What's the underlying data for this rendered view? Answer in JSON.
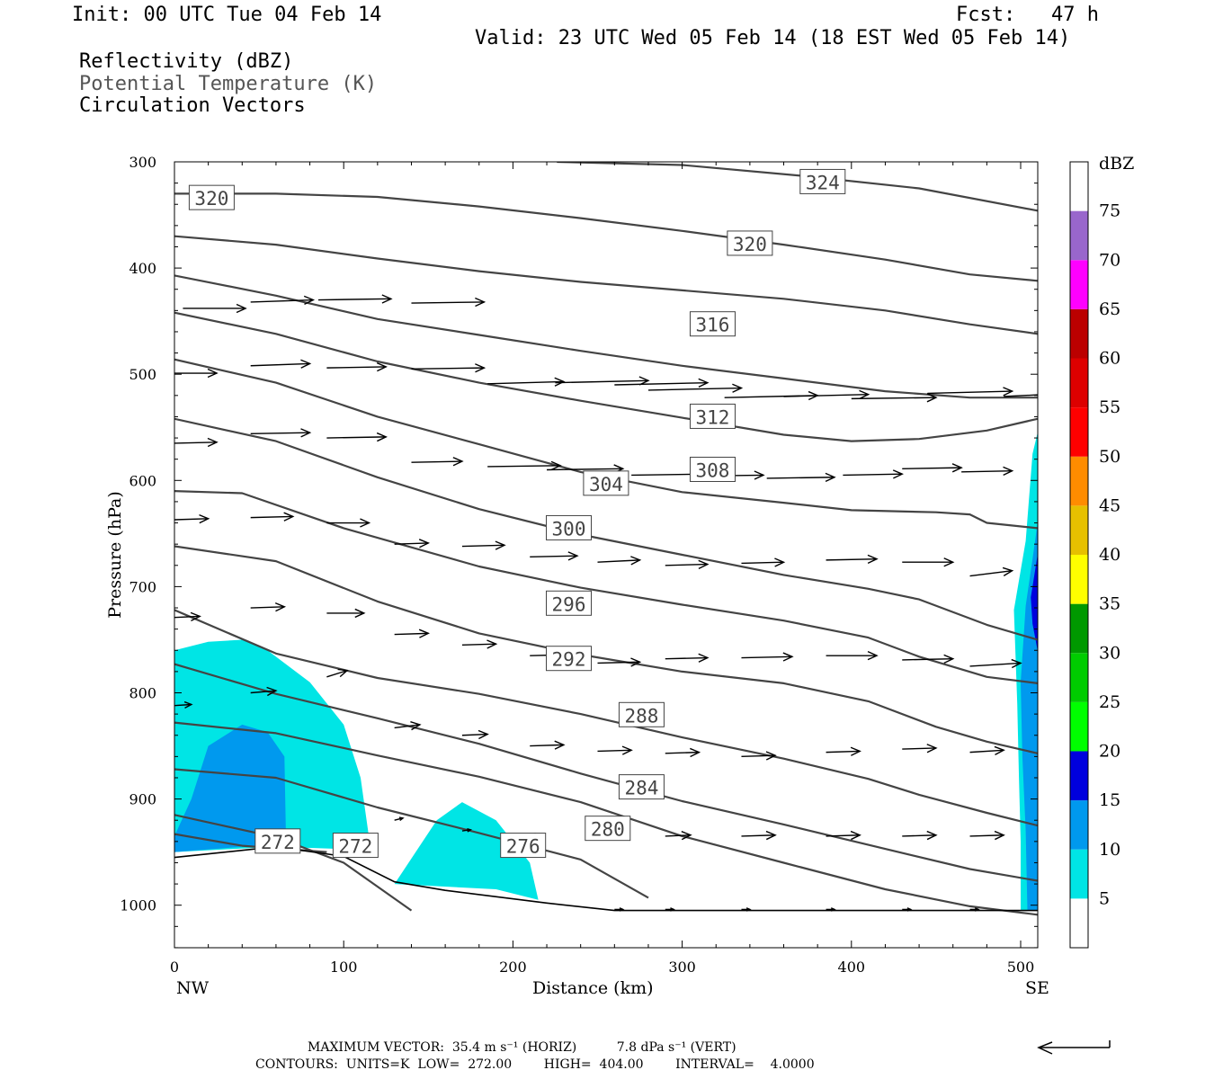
{
  "header": {
    "init": "Init: 00 UTC Tue 04 Feb 14",
    "fcst": "Fcst:   47 h",
    "valid": "Valid: 23 UTC Wed 05 Feb 14 (18 EST Wed 05 Feb 14)",
    "field1": "Reflectivity (dBZ)",
    "field2": "Potential Temperature (K)",
    "field3": "Circulation Vectors"
  },
  "footer": {
    "line1": "MAXIMUM VECTOR:  35.4 m s⁻¹ (HORIZ)          7.8 dPa s⁻¹ (VERT)",
    "line2": "CONTOURS:  UNITS=K  LOW=  272.00        HIGH=  404.00        INTERVAL=    4.0000"
  },
  "colors": {
    "contour": "#444444",
    "dbz_5": "#00e5e5",
    "dbz_10": "#0099ee",
    "dbz_15": "#0000dd"
  },
  "chart_data": {
    "type": "cross-section",
    "xlabel": "Distance (km)",
    "ylabel": "Pressure (hPa)",
    "x_ticks": [
      0,
      100,
      200,
      300,
      400,
      500
    ],
    "y_ticks": [
      300,
      400,
      500,
      600,
      700,
      800,
      900,
      1000
    ],
    "xlim": [
      0,
      510
    ],
    "ylim": [
      300,
      1040
    ],
    "y_inverted": true,
    "x_end_labels": {
      "left": "NW",
      "right": "SE"
    },
    "colorbar": {
      "unit": "dBZ",
      "levels": [
        5,
        10,
        15,
        20,
        25,
        30,
        35,
        40,
        45,
        50,
        55,
        60,
        65,
        70,
        75
      ],
      "colors": [
        "#ffffff",
        "#00e5e5",
        "#0099ee",
        "#0000dd",
        "#00ff00",
        "#00cc00",
        "#009900",
        "#ffff00",
        "#e6c000",
        "#ff8c00",
        "#ff0000",
        "#dd0000",
        "#bb0000",
        "#ff00ff",
        "#9966cc",
        "#ffffff"
      ]
    },
    "contour_labels": [
      {
        "value": "324",
        "x": 383,
        "p": 319
      },
      {
        "value": "320",
        "x": 22,
        "p": 334
      },
      {
        "value": "320",
        "x": 340,
        "p": 377
      },
      {
        "value": "316",
        "x": 318,
        "p": 453
      },
      {
        "value": "312",
        "x": 318,
        "p": 540
      },
      {
        "value": "308",
        "x": 318,
        "p": 590
      },
      {
        "value": "304",
        "x": 255,
        "p": 603
      },
      {
        "value": "300",
        "x": 233,
        "p": 645
      },
      {
        "value": "296",
        "x": 233,
        "p": 716
      },
      {
        "value": "292",
        "x": 233,
        "p": 768
      },
      {
        "value": "288",
        "x": 276,
        "p": 821
      },
      {
        "value": "284",
        "x": 276,
        "p": 889
      },
      {
        "value": "280",
        "x": 256,
        "p": 928
      },
      {
        "value": "276",
        "x": 206,
        "p": 944
      },
      {
        "value": "272",
        "x": 61,
        "p": 940
      },
      {
        "value": "272",
        "x": 107,
        "p": 944
      }
    ],
    "isentropes": [
      [
        [
          226,
          300
        ],
        [
          300,
          303
        ],
        [
          370,
          313
        ],
        [
          440,
          325
        ],
        [
          510,
          346
        ]
      ],
      [
        [
          0,
          330
        ],
        [
          60,
          330
        ],
        [
          120,
          333
        ],
        [
          180,
          342
        ],
        [
          240,
          353
        ],
        [
          300,
          365
        ],
        [
          360,
          378
        ],
        [
          420,
          392
        ],
        [
          470,
          406
        ],
        [
          510,
          412
        ]
      ],
      [
        [
          0,
          370
        ],
        [
          60,
          378
        ],
        [
          120,
          391
        ],
        [
          180,
          403
        ],
        [
          240,
          413
        ],
        [
          300,
          421
        ],
        [
          360,
          429
        ],
        [
          420,
          440
        ],
        [
          470,
          453
        ],
        [
          510,
          462
        ]
      ],
      [
        [
          0,
          407
        ],
        [
          60,
          426
        ],
        [
          120,
          448
        ],
        [
          180,
          463
        ],
        [
          240,
          478
        ],
        [
          300,
          492
        ],
        [
          360,
          504
        ],
        [
          420,
          516
        ],
        [
          470,
          522
        ],
        [
          510,
          522
        ]
      ],
      [
        [
          0,
          442
        ],
        [
          60,
          462
        ],
        [
          120,
          488
        ],
        [
          180,
          508
        ],
        [
          240,
          525
        ],
        [
          300,
          541
        ],
        [
          360,
          557
        ],
        [
          400,
          563
        ],
        [
          440,
          561
        ],
        [
          480,
          553
        ],
        [
          510,
          542
        ]
      ],
      [
        [
          0,
          486
        ],
        [
          60,
          508
        ],
        [
          120,
          540
        ],
        [
          180,
          566
        ],
        [
          240,
          592
        ],
        [
          300,
          611
        ],
        [
          360,
          621
        ],
        [
          400,
          628
        ],
        [
          450,
          630
        ],
        [
          470,
          632
        ],
        [
          480,
          640
        ],
        [
          510,
          645
        ]
      ],
      [
        [
          0,
          542
        ],
        [
          60,
          563
        ],
        [
          120,
          597
        ],
        [
          180,
          627
        ],
        [
          240,
          651
        ],
        [
          300,
          670
        ],
        [
          360,
          689
        ],
        [
          410,
          702
        ],
        [
          440,
          712
        ],
        [
          480,
          736
        ],
        [
          510,
          750
        ]
      ],
      [
        [
          0,
          610
        ],
        [
          40,
          612
        ],
        [
          100,
          645
        ],
        [
          180,
          681
        ],
        [
          240,
          701
        ],
        [
          300,
          717
        ],
        [
          360,
          732
        ],
        [
          410,
          748
        ],
        [
          440,
          766
        ],
        [
          480,
          785
        ],
        [
          510,
          791
        ]
      ],
      [
        [
          0,
          662
        ],
        [
          60,
          676
        ],
        [
          120,
          714
        ],
        [
          180,
          744
        ],
        [
          240,
          764
        ],
        [
          300,
          780
        ],
        [
          360,
          791
        ],
        [
          410,
          808
        ],
        [
          450,
          832
        ],
        [
          480,
          846
        ],
        [
          510,
          857
        ]
      ],
      [
        [
          0,
          722
        ],
        [
          60,
          763
        ],
        [
          120,
          786
        ],
        [
          180,
          801
        ],
        [
          240,
          820
        ],
        [
          300,
          842
        ],
        [
          360,
          862
        ],
        [
          410,
          881
        ],
        [
          440,
          896
        ],
        [
          480,
          913
        ],
        [
          510,
          925
        ]
      ],
      [
        [
          0,
          773
        ],
        [
          60,
          801
        ],
        [
          120,
          824
        ],
        [
          180,
          848
        ],
        [
          240,
          876
        ],
        [
          300,
          902
        ],
        [
          360,
          924
        ],
        [
          420,
          947
        ],
        [
          470,
          966
        ],
        [
          510,
          977
        ]
      ],
      [
        [
          0,
          828
        ],
        [
          60,
          838
        ],
        [
          120,
          859
        ],
        [
          180,
          879
        ],
        [
          240,
          903
        ],
        [
          300,
          935
        ],
        [
          360,
          960
        ],
        [
          420,
          985
        ],
        [
          470,
          1001
        ],
        [
          510,
          1009
        ]
      ],
      [
        [
          0,
          872
        ],
        [
          60,
          880
        ],
        [
          120,
          908
        ],
        [
          180,
          932
        ],
        [
          240,
          957
        ],
        [
          280,
          993
        ]
      ],
      [
        [
          0,
          915
        ],
        [
          60,
          936
        ],
        [
          100,
          960
        ],
        [
          140,
          1005
        ]
      ],
      [
        [
          0,
          933
        ],
        [
          40,
          944
        ],
        [
          90,
          950
        ]
      ]
    ],
    "terrain": [
      [
        0,
        955
      ],
      [
        60,
        945
      ],
      [
        100,
        954
      ],
      [
        130,
        978
      ],
      [
        160,
        986
      ],
      [
        220,
        998
      ],
      [
        260,
        1005
      ],
      [
        510,
        1005
      ]
    ],
    "reflectivity_areas": [
      {
        "dbz": 5,
        "poly": [
          [
            0,
            760
          ],
          [
            20,
            752
          ],
          [
            40,
            750
          ],
          [
            55,
            760
          ],
          [
            80,
            790
          ],
          [
            100,
            830
          ],
          [
            110,
            880
          ],
          [
            116,
            948
          ],
          [
            60,
            945
          ],
          [
            0,
            950
          ]
        ]
      },
      {
        "dbz": 10,
        "poly": [
          [
            0,
            935
          ],
          [
            10,
            900
          ],
          [
            20,
            850
          ],
          [
            40,
            830
          ],
          [
            55,
            837
          ],
          [
            65,
            860
          ],
          [
            66,
            945
          ],
          [
            40,
            945
          ],
          [
            0,
            950
          ]
        ]
      },
      {
        "dbz": 5,
        "poly": [
          [
            130,
            980
          ],
          [
            155,
            920
          ],
          [
            170,
            903
          ],
          [
            190,
            920
          ],
          [
            210,
            960
          ],
          [
            215,
            995
          ],
          [
            190,
            985
          ],
          [
            130,
            980
          ]
        ]
      },
      {
        "dbz": 5,
        "poly": [
          [
            500,
            1005
          ],
          [
            500,
            940
          ],
          [
            499,
            880
          ],
          [
            498,
            810
          ],
          [
            496,
            722
          ],
          [
            503,
            657
          ],
          [
            507,
            575
          ],
          [
            510,
            555
          ],
          [
            510,
            1005
          ]
        ]
      },
      {
        "dbz": 10,
        "poly": [
          [
            504,
            1005
          ],
          [
            503,
            930
          ],
          [
            501,
            860
          ],
          [
            500,
            790
          ],
          [
            503,
            718
          ],
          [
            507,
            674
          ],
          [
            510,
            640
          ],
          [
            510,
            1005
          ]
        ]
      },
      {
        "dbz": 15,
        "poly": [
          [
            506,
            710
          ],
          [
            510,
            670
          ],
          [
            510,
            760
          ],
          [
            507,
            735
          ]
        ]
      }
    ],
    "vectors": [
      [
        [
          5,
          438,
          37,
          0
        ],
        [
          45,
          432,
          37,
          -2
        ],
        [
          85,
          430,
          43,
          -1
        ],
        [
          140,
          433,
          43,
          -1
        ]
      ],
      [
        [
          0,
          499,
          25,
          0
        ],
        [
          45,
          492,
          35,
          -2
        ],
        [
          90,
          494,
          35,
          -1
        ],
        [
          140,
          495,
          43,
          -1
        ],
        [
          185,
          509,
          45,
          -2
        ],
        [
          225,
          508,
          55,
          -2
        ],
        [
          260,
          510,
          55,
          -2
        ],
        [
          280,
          515,
          55,
          -2
        ],
        [
          325,
          522,
          55,
          -2
        ],
        [
          360,
          521,
          50,
          -2
        ],
        [
          400,
          523,
          50,
          -1
        ],
        [
          445,
          518,
          50,
          -2
        ],
        [
          490,
          521,
          50,
          -4
        ]
      ],
      [
        [
          0,
          565,
          25,
          -1
        ],
        [
          45,
          556,
          35,
          -1
        ],
        [
          90,
          560,
          35,
          -1
        ],
        [
          140,
          583,
          30,
          -1
        ],
        [
          185,
          587,
          43,
          -1
        ],
        [
          220,
          590,
          45,
          -1
        ],
        [
          270,
          595,
          45,
          -1
        ],
        [
          305,
          596,
          43,
          -1
        ],
        [
          350,
          598,
          40,
          -1
        ],
        [
          395,
          595,
          35,
          -1
        ],
        [
          430,
          589,
          35,
          -1
        ],
        [
          465,
          592,
          30,
          -1
        ]
      ],
      [
        [
          0,
          637,
          20,
          -1
        ],
        [
          45,
          635,
          25,
          -1
        ],
        [
          90,
          640,
          25,
          0
        ],
        [
          130,
          660,
          20,
          -1
        ],
        [
          170,
          662,
          25,
          -1
        ],
        [
          210,
          672,
          28,
          -1
        ],
        [
          250,
          677,
          25,
          -2
        ],
        [
          290,
          680,
          25,
          -1
        ],
        [
          335,
          678,
          25,
          -1
        ],
        [
          385,
          675,
          30,
          -1
        ],
        [
          430,
          677,
          30,
          0
        ],
        [
          470,
          690,
          25,
          -5
        ]
      ],
      [
        [
          0,
          729,
          15,
          -1
        ],
        [
          45,
          720,
          20,
          -1
        ],
        [
          90,
          725,
          22,
          0
        ],
        [
          130,
          745,
          20,
          -1
        ],
        [
          170,
          755,
          20,
          -1
        ],
        [
          210,
          765,
          25,
          -1
        ],
        [
          250,
          772,
          25,
          -1
        ],
        [
          290,
          768,
          25,
          -1
        ],
        [
          335,
          767,
          30,
          -1
        ],
        [
          385,
          765,
          30,
          0
        ],
        [
          430,
          769,
          30,
          -1
        ],
        [
          470,
          775,
          30,
          -3
        ]
      ],
      [
        [
          0,
          812,
          10,
          -1
        ],
        [
          45,
          800,
          15,
          -2
        ],
        [
          90,
          785,
          12,
          -6
        ],
        [
          130,
          833,
          15,
          -3
        ],
        [
          170,
          840,
          15,
          -1
        ],
        [
          210,
          850,
          20,
          -1
        ],
        [
          250,
          855,
          20,
          -1
        ],
        [
          290,
          857,
          20,
          -1
        ],
        [
          335,
          860,
          20,
          -1
        ],
        [
          385,
          856,
          20,
          -1
        ],
        [
          430,
          853,
          20,
          -1
        ],
        [
          470,
          856,
          20,
          -2
        ]
      ],
      [
        [
          130,
          920,
          5,
          -2
        ],
        [
          170,
          930,
          5,
          -1
        ],
        [
          210,
          935,
          5,
          -2
        ],
        [
          250,
          935,
          10,
          -1
        ],
        [
          290,
          935,
          15,
          -1
        ],
        [
          335,
          935,
          20,
          -1
        ],
        [
          385,
          935,
          20,
          -1
        ],
        [
          430,
          935,
          20,
          -1
        ],
        [
          470,
          935,
          20,
          -1
        ]
      ],
      [
        [
          260,
          1004,
          5,
          0
        ],
        [
          290,
          1004,
          5,
          0
        ],
        [
          335,
          1004,
          5,
          0
        ],
        [
          385,
          1004,
          5,
          0
        ],
        [
          430,
          1004,
          5,
          0
        ],
        [
          470,
          1004,
          5,
          0
        ]
      ]
    ]
  }
}
